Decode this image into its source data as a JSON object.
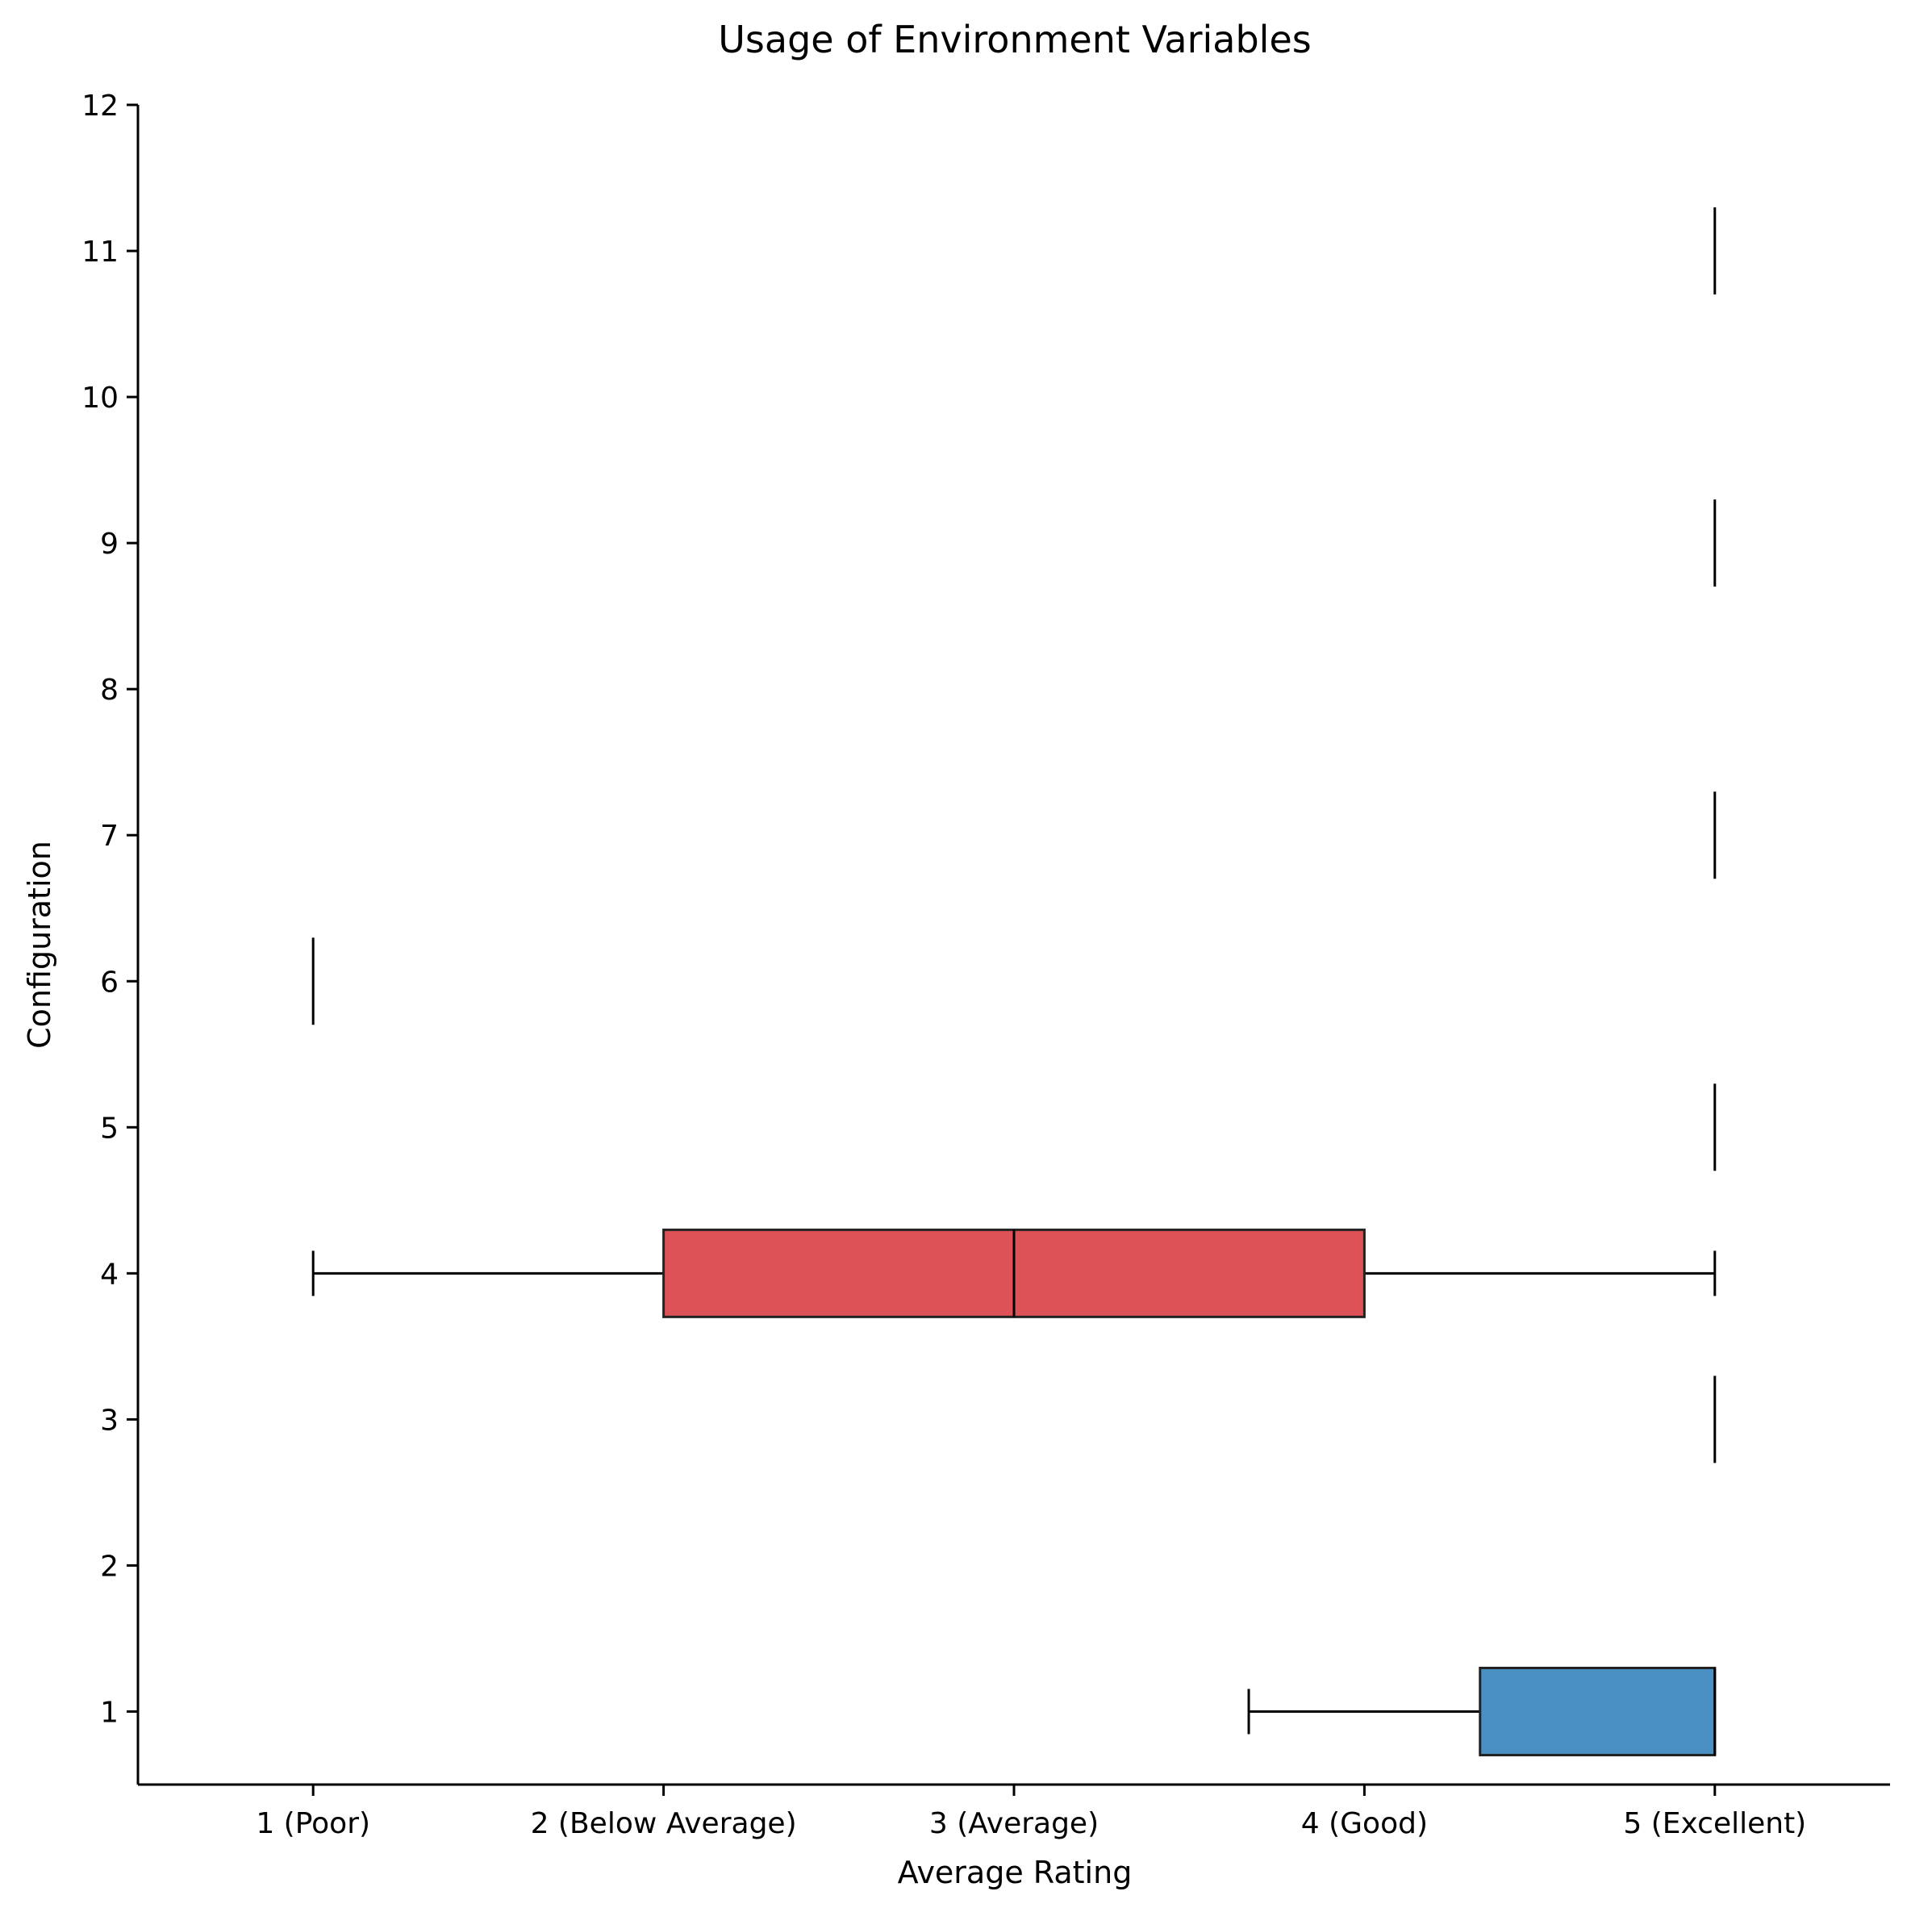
{
  "chart_data": {
    "type": "boxplot",
    "orientation": "horizontal",
    "title": "Usage of Environment Variables",
    "xlabel": "Average Rating",
    "ylabel": "Configuration",
    "xlim": [
      0.5,
      5.5
    ],
    "ylim": [
      0.5,
      12
    ],
    "x_ticks": [
      {
        "value": 1,
        "label": "1 (Poor)"
      },
      {
        "value": 2,
        "label": "2 (Below Average)"
      },
      {
        "value": 3,
        "label": "3 (Average)"
      },
      {
        "value": 4,
        "label": "4 (Good)"
      },
      {
        "value": 5,
        "label": "5 (Excellent)"
      }
    ],
    "y_ticks": [
      1,
      2,
      3,
      4,
      5,
      6,
      7,
      8,
      9,
      10,
      11,
      12
    ],
    "grid": false,
    "boxes": [
      {
        "position": 1,
        "whisker_low": 3.67,
        "q1": 4.33,
        "median": 5,
        "q3": 5,
        "whisker_high": 5,
        "color": "#4a90c2"
      },
      {
        "position": 3,
        "whisker_low": 5,
        "q1": 5,
        "median": 5,
        "q3": 5,
        "whisker_high": 5
      },
      {
        "position": 4,
        "whisker_low": 1,
        "q1": 2,
        "median": 3,
        "q3": 4,
        "whisker_high": 5,
        "color": "#dd5257"
      },
      {
        "position": 5,
        "whisker_low": 5,
        "q1": 5,
        "median": 5,
        "q3": 5,
        "whisker_high": 5
      },
      {
        "position": 6,
        "whisker_low": 1,
        "q1": 1,
        "median": 1,
        "q3": 1,
        "whisker_high": 1
      },
      {
        "position": 7,
        "whisker_low": 5,
        "q1": 5,
        "median": 5,
        "q3": 5,
        "whisker_high": 5
      },
      {
        "position": 9,
        "whisker_low": 5,
        "q1": 5,
        "median": 5,
        "q3": 5,
        "whisker_high": 5
      },
      {
        "position": 11,
        "whisker_low": 5,
        "q1": 5,
        "median": 5,
        "q3": 5,
        "whisker_high": 5
      }
    ]
  }
}
